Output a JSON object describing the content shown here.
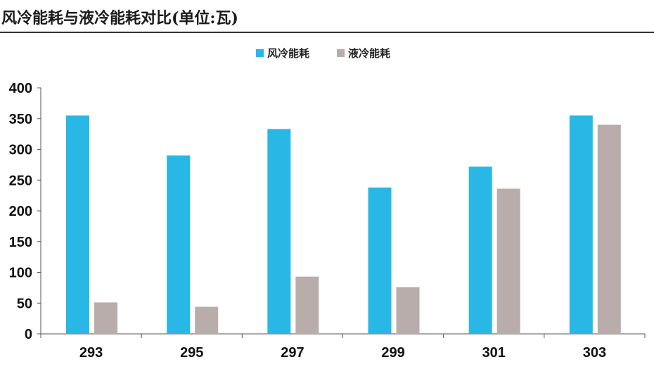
{
  "title": "风冷能耗与液冷能耗对比(单位:瓦)",
  "chart_data": {
    "type": "bar",
    "categories": [
      "293",
      "295",
      "297",
      "299",
      "301",
      "303"
    ],
    "series": [
      {
        "name": "风冷能耗",
        "color": "#29b8e6",
        "values": [
          355,
          290,
          333,
          238,
          272,
          355
        ]
      },
      {
        "name": "液冷能耗",
        "color": "#b8adab",
        "values": [
          51,
          44,
          93,
          76,
          236,
          340
        ]
      }
    ],
    "ylim": [
      0,
      400
    ],
    "yticks": [
      0,
      50,
      100,
      150,
      200,
      250,
      300,
      350,
      400
    ],
    "legend": "top-center",
    "grid": false
  }
}
